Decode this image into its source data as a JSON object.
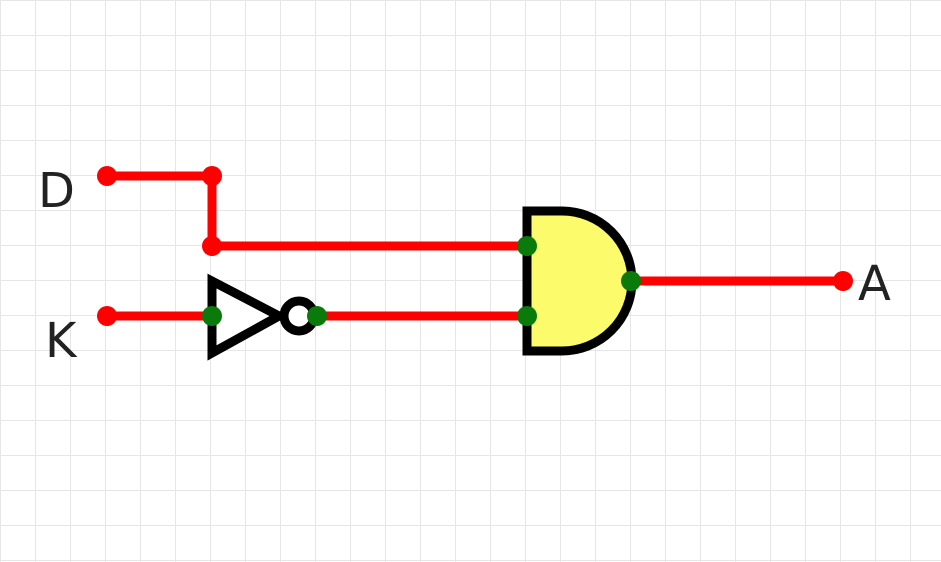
{
  "diagram": {
    "type": "logic-circuit",
    "inputs": [
      {
        "name": "D"
      },
      {
        "name": "K"
      }
    ],
    "outputs": [
      {
        "name": "A"
      }
    ],
    "gates": [
      {
        "kind": "NOT",
        "input": "K"
      },
      {
        "kind": "AND",
        "inputs": [
          "D",
          "NOT K"
        ],
        "output": "A"
      }
    ]
  },
  "colors": {
    "wire": "#ff0000",
    "pin": "#0a7a0a",
    "and_fill": "#fbfb6b",
    "outline": "#000000",
    "grid": "#e6e6e6"
  }
}
